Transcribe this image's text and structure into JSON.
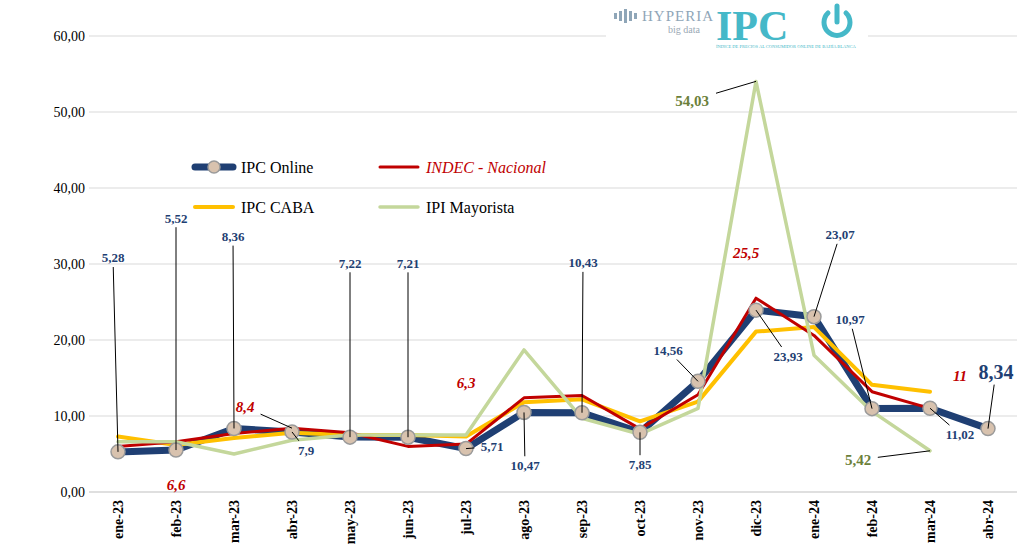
{
  "chart_data": {
    "type": "line",
    "logo": {
      "brand": "HYPERIA",
      "brand_sub": "big data",
      "name": "IPC",
      "tagline": "ÍNDICE DE PRECIOS AL CONSUMIDOR ONLINE DE BAHÍA BLANCA"
    },
    "categories": [
      "ene-23",
      "feb-23",
      "mar-23",
      "abr-23",
      "may-23",
      "jun-23",
      "jul-23",
      "ago-23",
      "sep-23",
      "oct-23",
      "nov-23",
      "dic-23",
      "ene-24",
      "feb-24",
      "mar-24",
      "abr-24"
    ],
    "ylim": [
      0,
      60
    ],
    "yticks": [
      {
        "value": 0,
        "label": "0,00"
      },
      {
        "value": 10,
        "label": "10,00"
      },
      {
        "value": 20,
        "label": "20,00"
      },
      {
        "value": 30,
        "label": "30,00"
      },
      {
        "value": 40,
        "label": "40,00"
      },
      {
        "value": 50,
        "label": "50,00"
      },
      {
        "value": 60,
        "label": "60,00"
      }
    ],
    "grid": true,
    "legend": "upper left",
    "data_labels": true,
    "series": [
      {
        "name": "IPC Online",
        "color": "#1f3f73",
        "marker": "circle",
        "line_style": "solid",
        "values": [
          5.28,
          5.52,
          8.36,
          7.9,
          7.22,
          7.21,
          5.71,
          10.47,
          10.43,
          7.85,
          14.56,
          23.93,
          23.07,
          10.97,
          11.02,
          8.34
        ],
        "value_labels": [
          "5,28",
          "5,52",
          "8,36",
          "7,9",
          "7,22",
          "7,21",
          "5,71",
          "10,47",
          "10,43",
          "7,85",
          "14,56",
          "23,93",
          "23,07",
          "10,97",
          "11,02",
          "8,34"
        ]
      },
      {
        "name": "INDEC - Nacional",
        "color": "#c00000",
        "marker": "none",
        "line_style": "solid",
        "values": [
          6.0,
          6.6,
          7.7,
          8.4,
          7.8,
          6.0,
          6.3,
          12.4,
          12.7,
          8.3,
          12.8,
          25.5,
          20.6,
          13.2,
          11,
          null
        ],
        "value_labels": [
          null,
          "6,6",
          null,
          "8,4",
          null,
          null,
          "6,3",
          null,
          null,
          null,
          null,
          "25,5",
          null,
          null,
          "11",
          null
        ]
      },
      {
        "name": "IPC CABA",
        "color": "#ffc000",
        "marker": "none",
        "line_style": "solid",
        "values": [
          7.3,
          6.2,
          7.1,
          7.8,
          7.5,
          7.5,
          7.3,
          11.8,
          12.2,
          9.3,
          11.9,
          21.1,
          21.7,
          14.1,
          13.2,
          null
        ]
      },
      {
        "name": "IPI Mayorista",
        "color": "#c4d79b",
        "marker": "none",
        "line_style": "solid",
        "values": [
          6.6,
          6.6,
          5.0,
          6.8,
          7.5,
          7.5,
          7.5,
          18.7,
          9.7,
          7.6,
          11.0,
          54.03,
          18.0,
          10.6,
          5.42,
          null
        ],
        "value_labels": [
          null,
          null,
          null,
          null,
          null,
          null,
          null,
          null,
          null,
          null,
          null,
          "54,03",
          null,
          null,
          "5,42",
          null
        ]
      }
    ]
  }
}
